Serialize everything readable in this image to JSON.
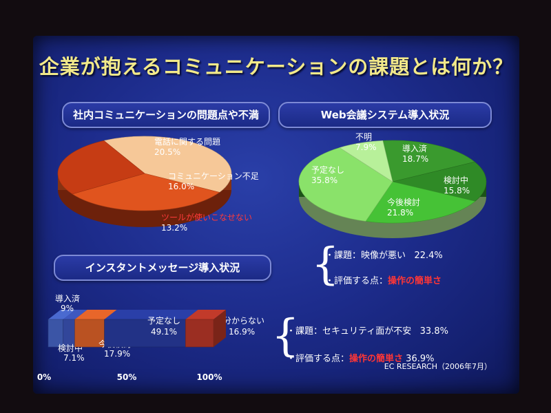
{
  "slide": {
    "title": "企業が抱えるコミュニケーションの課題とは何か？",
    "source": "EC RESEARCH（2006年7月）"
  },
  "colors": {
    "background": "#1d2c8c",
    "title": "#f2e98a",
    "highlight": "#ff3636",
    "orange_pie": "#d2501e",
    "green_pie": "#4cc83c"
  },
  "chart_data": [
    {
      "type": "pie",
      "title": "社内コミュニケーションの問題点や不満",
      "slices": [
        {
          "label": "電話に関する問題",
          "value": 20.5,
          "color": "#f6c898"
        },
        {
          "label": "コミュニケーション不足",
          "value": 16.0,
          "color": "#e0541e"
        },
        {
          "label": "ツールが使いこなせない",
          "value": 13.2,
          "color": "#c63c14",
          "highlight": true
        }
      ]
    },
    {
      "type": "pie",
      "title": "Web会議システム導入状況",
      "slices": [
        {
          "label": "導入済",
          "value": 18.7,
          "color": "#3a9a2e"
        },
        {
          "label": "検討中",
          "value": 15.8,
          "color": "#2f8a26"
        },
        {
          "label": "今後検討",
          "value": 21.8,
          "color": "#46c236"
        },
        {
          "label": "予定なし",
          "value": 35.8,
          "color": "#8ae26a"
        },
        {
          "label": "不明",
          "value": 7.9,
          "color": "#b8f09a"
        }
      ],
      "notes": [
        {
          "prefix": "・課題：",
          "text": "映像が悪い",
          "value": "22.4%"
        },
        {
          "prefix": "・評価する点：",
          "highlight": "操作の簡単さ"
        }
      ]
    },
    {
      "type": "bar",
      "orientation": "stacked-horizontal",
      "title": "インスタントメッセージ導入状況",
      "x_ticks": [
        "0%",
        "50%",
        "100%"
      ],
      "xlim": [
        0,
        100
      ],
      "segments": [
        {
          "label": "導入済",
          "value": 9,
          "value_text": "9%",
          "color": "#4a6ad0"
        },
        {
          "label": "検討中",
          "value": 7.1,
          "value_text": "7.1%",
          "color": "#3e58c0"
        },
        {
          "label": "今後検討",
          "value": 17.9,
          "value_text": "17.9%",
          "color": "#e8662a"
        },
        {
          "label": "予定なし",
          "value": 49.1,
          "value_text": "49.1%",
          "color": "#2a3fa8"
        },
        {
          "label": "分からない",
          "value": 16.9,
          "value_text": "16.9%",
          "color": "#c23a2a"
        }
      ],
      "notes": [
        {
          "prefix": "・課題：",
          "text": "セキュリティ面が不安",
          "value": "33.8%"
        },
        {
          "prefix": "・評価する点：",
          "highlight": "操作の簡単さ",
          "value": "36.9%"
        }
      ]
    }
  ]
}
